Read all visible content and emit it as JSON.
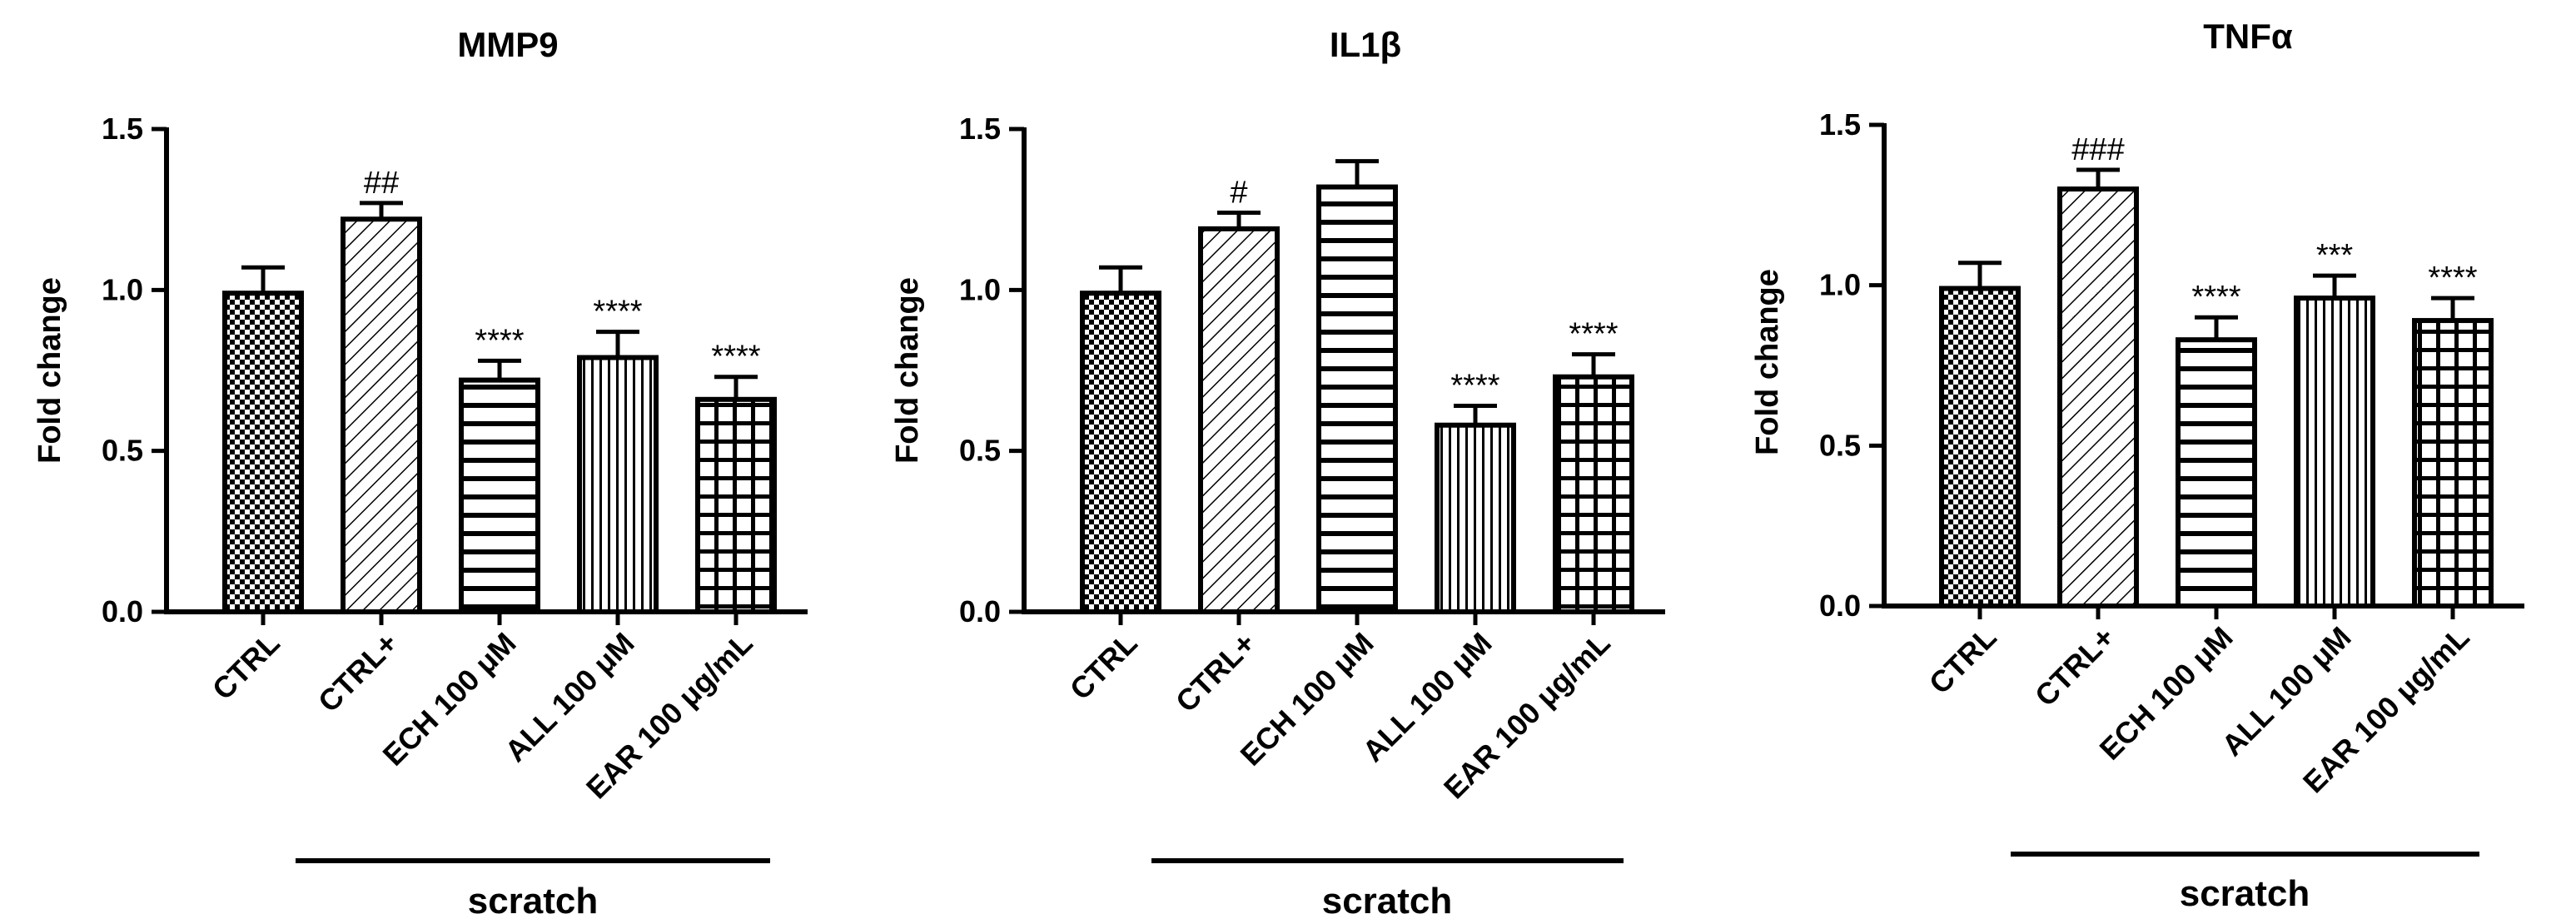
{
  "chart_data": [
    {
      "type": "bar",
      "title": "MMP9",
      "ylabel": "Fold change",
      "xlabel": "",
      "ylim": [
        0,
        1.5
      ],
      "yticks": [
        "0.0",
        "0.5",
        "1.0",
        "1.5"
      ],
      "categories": [
        "CTRL",
        "CTRL+",
        "ECH 100 μM",
        "ALL 100 μM",
        "EAR 100 μg/mL"
      ],
      "values": [
        0.99,
        1.22,
        0.72,
        0.79,
        0.66
      ],
      "errors": [
        0.08,
        0.05,
        0.06,
        0.08,
        0.07
      ],
      "annotations": [
        "",
        "##",
        "****",
        "****",
        "****"
      ],
      "patterns": [
        "checker",
        "diagonal",
        "horizontal",
        "vertical",
        "grid"
      ],
      "group_label": "scratch",
      "grid": false
    },
    {
      "type": "bar",
      "title": "IL1β",
      "ylabel": "Fold change",
      "xlabel": "",
      "ylim": [
        0,
        1.5
      ],
      "yticks": [
        "0.0",
        "0.5",
        "1.0",
        "1.5"
      ],
      "categories": [
        "CTRL",
        "CTRL+",
        "ECH 100 μM",
        "ALL 100 μM",
        "EAR 100 μg/mL"
      ],
      "values": [
        0.99,
        1.19,
        1.32,
        0.58,
        0.73
      ],
      "errors": [
        0.08,
        0.05,
        0.08,
        0.06,
        0.07
      ],
      "annotations": [
        "",
        "#",
        "",
        "****",
        "****"
      ],
      "patterns": [
        "checker",
        "diagonal",
        "horizontal",
        "vertical",
        "grid"
      ],
      "group_label": "scratch",
      "grid": false
    },
    {
      "type": "bar",
      "title": "TNFα",
      "ylabel": "Fold change",
      "xlabel": "",
      "ylim": [
        0,
        1.5
      ],
      "yticks": [
        "0.0",
        "0.5",
        "1.0",
        "1.5"
      ],
      "categories": [
        "CTRL",
        "CTRL+",
        "ECH 100 μM",
        "ALL 100 μM",
        "EAR 100 μg/mL"
      ],
      "values": [
        0.99,
        1.3,
        0.83,
        0.96,
        0.89
      ],
      "errors": [
        0.08,
        0.06,
        0.07,
        0.07,
        0.07
      ],
      "annotations": [
        "",
        "###",
        "****",
        "***",
        "****"
      ],
      "patterns": [
        "checker",
        "diagonal",
        "horizontal",
        "vertical",
        "grid"
      ],
      "group_label": "scratch",
      "grid": false
    }
  ]
}
